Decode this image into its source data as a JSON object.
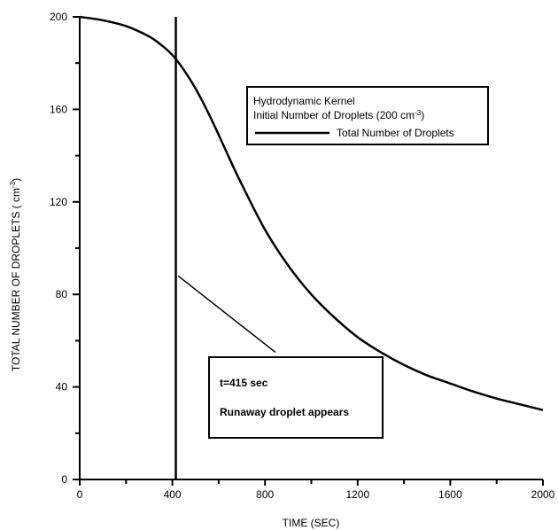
{
  "chart_data": {
    "type": "line",
    "xlabel": "TIME (SEC)",
    "ylabel_main": "TOTAL NUMBER OF DROPLETS ( cm",
    "ylabel_sup": "-3",
    "ylabel_end": ")",
    "xlim": [
      0,
      2000
    ],
    "ylim": [
      0,
      200
    ],
    "x_ticks": [
      0,
      400,
      800,
      1200,
      1600,
      2000
    ],
    "x_ticks_minor": [
      200,
      600,
      1000,
      1400,
      1800
    ],
    "y_ticks": [
      0,
      40,
      80,
      120,
      160,
      200
    ],
    "y_ticks_minor": [
      20,
      60,
      100,
      140,
      180
    ],
    "grid": false,
    "series": [
      {
        "name": "Total Number of Droplets",
        "x": [
          0,
          100,
          200,
          300,
          350,
          400,
          450,
          500,
          550,
          600,
          650,
          700,
          800,
          900,
          1000,
          1100,
          1200,
          1300,
          1400,
          1500,
          1600,
          1700,
          1800,
          1900,
          2000
        ],
        "y": [
          200,
          198.5,
          196,
          191.5,
          188,
          183.5,
          177,
          169,
          159.5,
          149,
          138,
          127.5,
          108,
          92.5,
          80,
          70,
          61.5,
          55,
          49.5,
          45,
          41.5,
          38,
          35,
          32.5,
          30
        ]
      }
    ],
    "vline": {
      "x": 415,
      "y_from": 0,
      "y_to": 200
    },
    "legend": {
      "line1": "Hydrodynamic Kernel",
      "line2_main": "Initial Number of Droplets (200 cm",
      "line2_sup": "-3",
      "line2_end": ")",
      "series_label": "Total Number of Droplets",
      "placement": "top-right"
    },
    "annotation": {
      "line1": "t=415 sec",
      "line2": "Runaway droplet appears",
      "pointer_from": {
        "x": 425,
        "y": 88
      },
      "pointer_to": {
        "x": 845,
        "y": 55
      }
    }
  }
}
